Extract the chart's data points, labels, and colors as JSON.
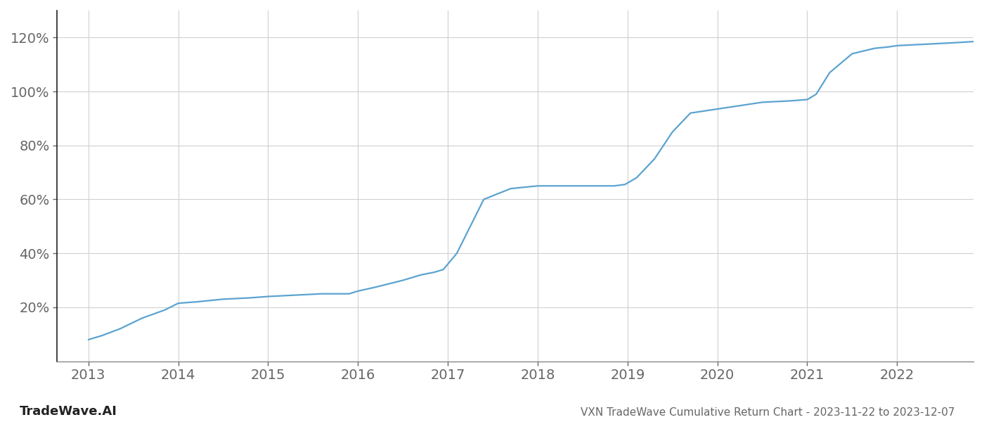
{
  "title": "VXN TradeWave Cumulative Return Chart - 2023-11-22 to 2023-12-07",
  "watermark": "TradeWave.AI",
  "line_color": "#5ba3d0",
  "background_color": "#ffffff",
  "grid_color": "#d0d0d0",
  "x_values": [
    2013.0,
    2013.15,
    2013.35,
    2013.6,
    2013.85,
    2014.0,
    2014.2,
    2014.5,
    2014.8,
    2015.0,
    2015.3,
    2015.6,
    2015.9,
    2016.0,
    2016.2,
    2016.5,
    2016.7,
    2016.85,
    2016.95,
    2017.1,
    2017.4,
    2017.7,
    2018.0,
    2018.3,
    2018.6,
    2018.85,
    2018.97,
    2019.1,
    2019.3,
    2019.5,
    2019.7,
    2019.9,
    2020.0,
    2020.2,
    2020.5,
    2020.8,
    2021.0,
    2021.1,
    2021.25,
    2021.5,
    2021.75,
    2021.9,
    2022.0,
    2022.3,
    2022.6,
    2022.85
  ],
  "y_values": [
    8,
    9.5,
    12,
    16,
    19,
    21.5,
    22,
    23,
    23.5,
    24,
    24.5,
    25,
    25,
    26,
    27.5,
    30,
    32,
    33,
    34,
    40,
    60,
    64,
    65,
    65,
    65,
    65,
    65.5,
    68,
    75,
    85,
    92,
    93,
    93.5,
    94.5,
    96,
    96.5,
    97,
    99,
    107,
    114,
    116,
    116.5,
    117,
    117.5,
    118,
    118.5
  ],
  "xlim": [
    2012.65,
    2022.85
  ],
  "ylim": [
    0,
    130
  ],
  "yticks": [
    20,
    40,
    60,
    80,
    100,
    120
  ],
  "ytick_labels": [
    "20%",
    "40%",
    "60%",
    "80%",
    "100%",
    "120%"
  ],
  "xticks": [
    2013,
    2014,
    2015,
    2016,
    2017,
    2018,
    2019,
    2020,
    2021,
    2022
  ],
  "xtick_labels": [
    "2013",
    "2014",
    "2015",
    "2016",
    "2017",
    "2018",
    "2019",
    "2020",
    "2021",
    "2022"
  ],
  "line_width": 1.6,
  "left_spine_color": "#222222",
  "bottom_spine_color": "#888888",
  "tick_color": "#666666",
  "tick_fontsize": 14,
  "title_fontsize": 11,
  "watermark_fontsize": 13
}
